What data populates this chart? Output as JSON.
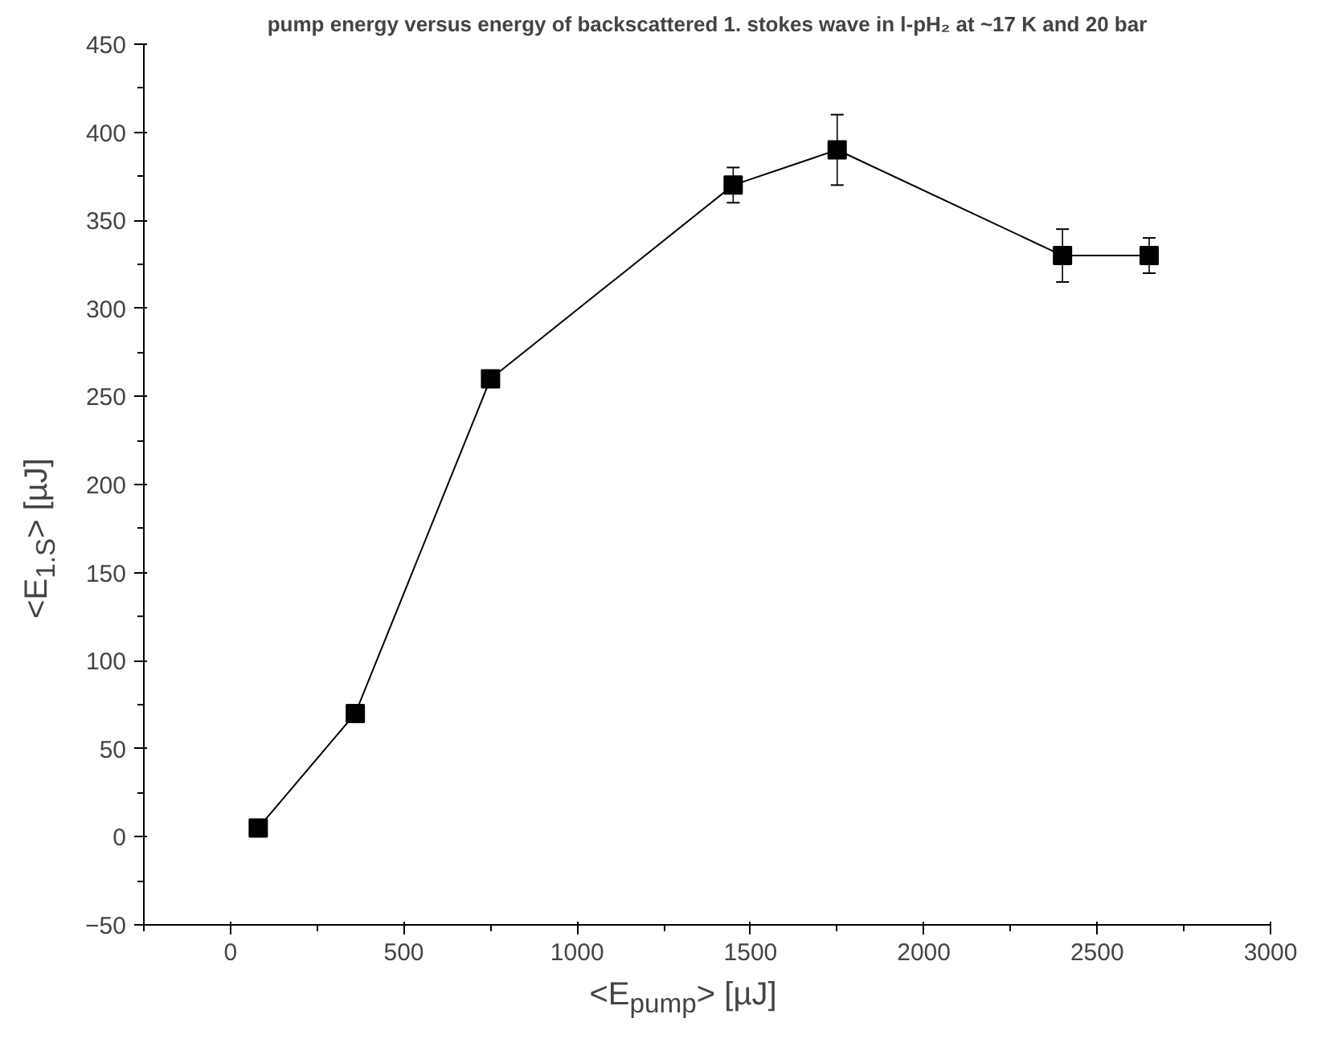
{
  "chart_data": {
    "type": "line",
    "title": "pump energy versus energy of backscattered 1. stokes wave in l-pH₂ at ~17 K and 20 bar",
    "xlabel": "<E$_{pump}$> [µJ]",
    "ylabel": "<E$_{1.S}$> [µJ]",
    "x": [
      80,
      360,
      750,
      1450,
      1750,
      2400,
      2650
    ],
    "series": [
      {
        "color": "#000000",
        "values": [
          5,
          70,
          260,
          370,
          390,
          330,
          330
        ],
        "errors": [
          null,
          null,
          null,
          10,
          20,
          15,
          10
        ]
      }
    ],
    "xlim": [
      -250,
      3000
    ],
    "xticks": [
      0,
      500,
      1000,
      1500,
      2000,
      2500,
      3000
    ],
    "ylim": [
      -50,
      450
    ],
    "yticks": [
      -50,
      0,
      50,
      100,
      150,
      200,
      250,
      300,
      350,
      400,
      450
    ],
    "marker": "square",
    "line_style": "solid"
  }
}
